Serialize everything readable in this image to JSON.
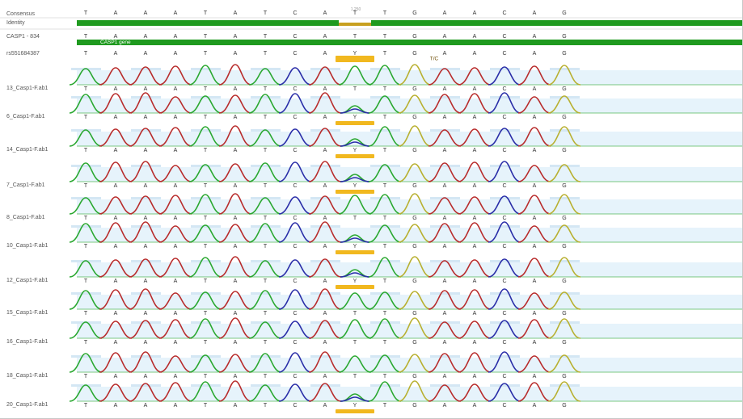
{
  "rows": {
    "consensus": "Consensus",
    "identity": "Identity",
    "reference": "CASP1 - 834",
    "snp": "rs551684387",
    "gene_annotation": "CASP1 gene",
    "snp_annotation": "T/C",
    "position_marker": "1,250"
  },
  "bases": [
    "T",
    "A",
    "A",
    "A",
    "T",
    "A",
    "T",
    "C",
    "A",
    "T",
    "T",
    "G",
    "A",
    "A",
    "C",
    "A",
    "G"
  ],
  "ambiguous_index": 9,
  "ambiguous_call": "Y",
  "traces": [
    {
      "name": "13_Casp1-F.ab1",
      "het": false
    },
    {
      "name": "6_Casp1-F.ab1",
      "het": true
    },
    {
      "name": "14_Casp1-F.ab1",
      "het": true
    },
    {
      "name": "7_Casp1-F.ab1",
      "het": true
    },
    {
      "name": "8_Casp1-F.ab1",
      "het": false
    },
    {
      "name": "10_Casp1-F.ab1",
      "het": true
    },
    {
      "name": "12_Casp1-F.ab1",
      "het": true
    },
    {
      "name": "15_Casp1-F.ab1",
      "het": false
    },
    {
      "name": "16_Casp1-F.ab1",
      "het": false
    },
    {
      "name": "18_Casp1-F.ab1",
      "het": false
    },
    {
      "name": "20_Casp1-F.ab1",
      "het": true
    }
  ],
  "colors": {
    "A": "#b82c2c",
    "C": "#2a2ea8",
    "G": "#b8b030",
    "T": "#2aa830",
    "identity_bar": "#1f9a1f",
    "annotation": "#f1b81f",
    "quality_bg": "#e6f3fb",
    "label": "#555555"
  }
}
